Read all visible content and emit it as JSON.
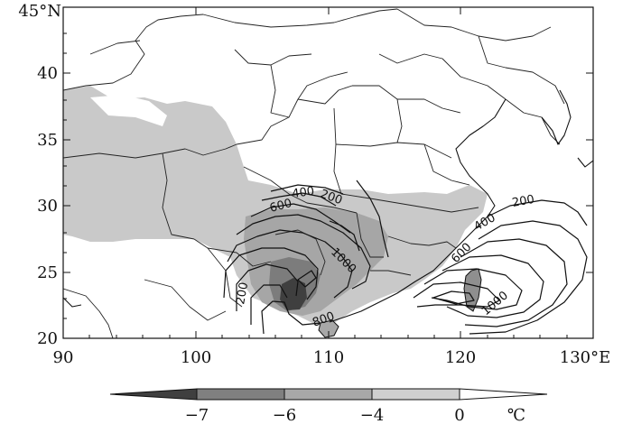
{
  "map": {
    "lat_ticks": [
      {
        "value": 20,
        "label": "20"
      },
      {
        "value": 25,
        "label": "25"
      },
      {
        "value": 30,
        "label": "30"
      },
      {
        "value": 35,
        "label": "35"
      },
      {
        "value": 40,
        "label": "40"
      },
      {
        "value": 45,
        "label": "45°N"
      }
    ],
    "lon_ticks": [
      {
        "value": 90,
        "label": "90"
      },
      {
        "value": 100,
        "label": "100"
      },
      {
        "value": 110,
        "label": "110"
      },
      {
        "value": 120,
        "label": "120"
      },
      {
        "value": 130,
        "label": "130°E"
      }
    ],
    "extent": {
      "lon": [
        90,
        130
      ],
      "lat": [
        20,
        45
      ]
    },
    "shading_colors": [
      "#3f3f3f",
      "#808080",
      "#a8a8a8",
      "#cfcfcf",
      "#ffffff"
    ],
    "contour_labels": [
      "200",
      "400",
      "600",
      "1000",
      "200",
      "400",
      "600",
      "800",
      "200",
      "1000",
      "800"
    ]
  },
  "colorbar": {
    "labels": [
      "−7",
      "−6",
      "−4",
      "0"
    ],
    "unit": "℃"
  }
}
